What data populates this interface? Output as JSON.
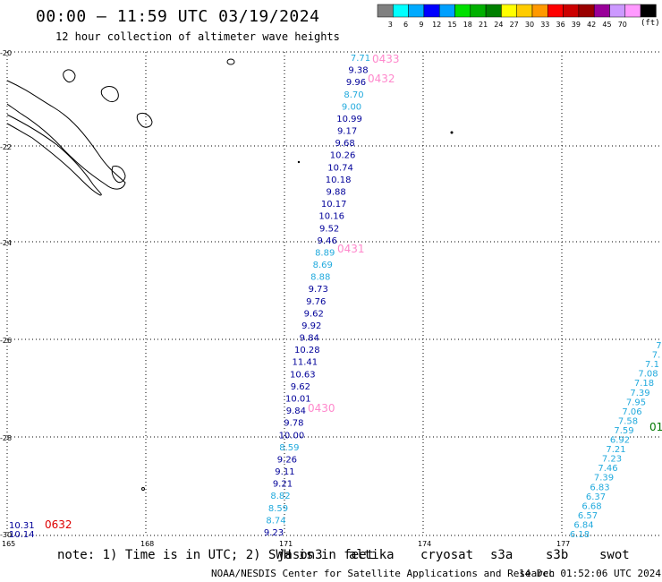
{
  "header": {
    "title": "00:00 — 11:59 UTC 03/19/2024",
    "subtitle": "12 hour collection of altimeter wave heights"
  },
  "legend": {
    "unit": "(ft)",
    "colors": [
      "#808080",
      "#00ffff",
      "#00aaff",
      "#0000ff",
      "#00a0ff",
      "#00e000",
      "#00b000",
      "#008000",
      "#ffff00",
      "#ffcc00",
      "#ff9900",
      "#ff0000",
      "#cc0000",
      "#990000",
      "#990099",
      "#cc99ff",
      "#ff99ff",
      "#000000"
    ],
    "labels": [
      "3",
      "6",
      "9",
      "12",
      "15",
      "18",
      "21",
      "24",
      "27",
      "30",
      "33",
      "36",
      "39",
      "42",
      "45",
      "70"
    ]
  },
  "axes": {
    "lat_labels": [
      "-20",
      "-22",
      "-24",
      "-26",
      "-28",
      "-30"
    ],
    "lon_labels": [
      "165",
      "168",
      "171",
      "174",
      "177"
    ]
  },
  "tracks": [
    {
      "id": "track-1",
      "color_main": "#000099",
      "points": [
        {
          "v": "7.71",
          "c": "#22aadd"
        },
        {
          "v": "9.38",
          "c": "#000099"
        },
        {
          "v": "9.96",
          "c": "#000099"
        },
        {
          "v": "8.70",
          "c": "#22aadd"
        },
        {
          "v": "9.00",
          "c": "#22aadd"
        },
        {
          "v": "10.99",
          "c": "#000099"
        },
        {
          "v": "9.17",
          "c": "#000099"
        },
        {
          "v": "9.68",
          "c": "#000099"
        },
        {
          "v": "10.26",
          "c": "#000099"
        },
        {
          "v": "10.74",
          "c": "#000099"
        },
        {
          "v": "10.18",
          "c": "#000099"
        },
        {
          "v": "9.88",
          "c": "#000099"
        },
        {
          "v": "10.17",
          "c": "#000099"
        },
        {
          "v": "10.16",
          "c": "#000099"
        },
        {
          "v": "9.52",
          "c": "#000099"
        },
        {
          "v": "9.46",
          "c": "#000099"
        },
        {
          "v": "8.89",
          "c": "#22aadd"
        },
        {
          "v": "8.69",
          "c": "#22aadd"
        },
        {
          "v": "8.88",
          "c": "#22aadd"
        },
        {
          "v": "9.73",
          "c": "#000099"
        },
        {
          "v": "9.76",
          "c": "#000099"
        },
        {
          "v": "9.62",
          "c": "#000099"
        },
        {
          "v": "9.92",
          "c": "#000099"
        },
        {
          "v": "9.84",
          "c": "#000099"
        },
        {
          "v": "10.28",
          "c": "#000099"
        },
        {
          "v": "11.41",
          "c": "#000099"
        },
        {
          "v": "10.63",
          "c": "#000099"
        },
        {
          "v": "9.62",
          "c": "#000099"
        },
        {
          "v": "10.01",
          "c": "#000099"
        },
        {
          "v": "9.84",
          "c": "#000099"
        },
        {
          "v": "9.78",
          "c": "#000099"
        },
        {
          "v": "10.00",
          "c": "#000099"
        },
        {
          "v": "8.59",
          "c": "#22aadd"
        },
        {
          "v": "9.26",
          "c": "#000099"
        },
        {
          "v": "9.11",
          "c": "#000099"
        },
        {
          "v": "9.21",
          "c": "#000099"
        },
        {
          "v": "8.82",
          "c": "#22aadd"
        },
        {
          "v": "8.59",
          "c": "#22aadd"
        },
        {
          "v": "8.74",
          "c": "#22aadd"
        },
        {
          "v": "9.23",
          "c": "#000099"
        }
      ]
    },
    {
      "id": "track-2",
      "points": [
        {
          "v": "7.",
          "c": "#22aadd"
        },
        {
          "v": "7.",
          "c": "#22aadd"
        },
        {
          "v": "7.1",
          "c": "#22aadd"
        },
        {
          "v": "7.08",
          "c": "#22aadd"
        },
        {
          "v": "7.18",
          "c": "#22aadd"
        },
        {
          "v": "7.39",
          "c": "#22aadd"
        },
        {
          "v": "7.95",
          "c": "#22aadd"
        },
        {
          "v": "7.06",
          "c": "#22aadd"
        },
        {
          "v": "7.58",
          "c": "#22aadd"
        },
        {
          "v": "7.59",
          "c": "#22aadd"
        },
        {
          "v": "6.92",
          "c": "#22aadd"
        },
        {
          "v": "7.21",
          "c": "#22aadd"
        },
        {
          "v": "7.23",
          "c": "#22aadd"
        },
        {
          "v": "7.46",
          "c": "#22aadd"
        },
        {
          "v": "7.39",
          "c": "#22aadd"
        },
        {
          "v": "6.83",
          "c": "#22aadd"
        },
        {
          "v": "6.37",
          "c": "#22aadd"
        },
        {
          "v": "6.68",
          "c": "#22aadd"
        },
        {
          "v": "6.57",
          "c": "#22aadd"
        },
        {
          "v": "6.84",
          "c": "#22aadd"
        },
        {
          "v": "6.18",
          "c": "#22aadd"
        }
      ]
    },
    {
      "id": "track-3",
      "points": [
        {
          "v": "10.31",
          "c": "#000099"
        },
        {
          "v": "10.14",
          "c": "#000099"
        }
      ]
    }
  ],
  "time_labels": [
    {
      "t": "0433",
      "c": "#ff88cc"
    },
    {
      "t": "0432",
      "c": "#ff88cc"
    },
    {
      "t": "0431",
      "c": "#ff88cc"
    },
    {
      "t": "0430",
      "c": "#ff88cc"
    },
    {
      "t": "0632",
      "c": "#dd0000"
    },
    {
      "t": "01",
      "c": "#007700"
    }
  ],
  "footer_note": "note: 1) Time is in UTC; 2) SWH is in feet",
  "satellites": [
    {
      "name": "jason3",
      "c": "#007700"
    },
    {
      "name": "altika",
      "c": "#ff9900"
    },
    {
      "name": "cryosat",
      "c": "#dd0000"
    },
    {
      "name": "s3a",
      "c": "#990000"
    },
    {
      "name": "s3b",
      "c": "#bb99ee"
    },
    {
      "name": "swot",
      "c": "#ff99dd"
    }
  ],
  "credit": "NOAA/NESDIS Center for Satellite Applications and Research",
  "generated": "14 Dec 01:52:06 UTC 2024"
}
